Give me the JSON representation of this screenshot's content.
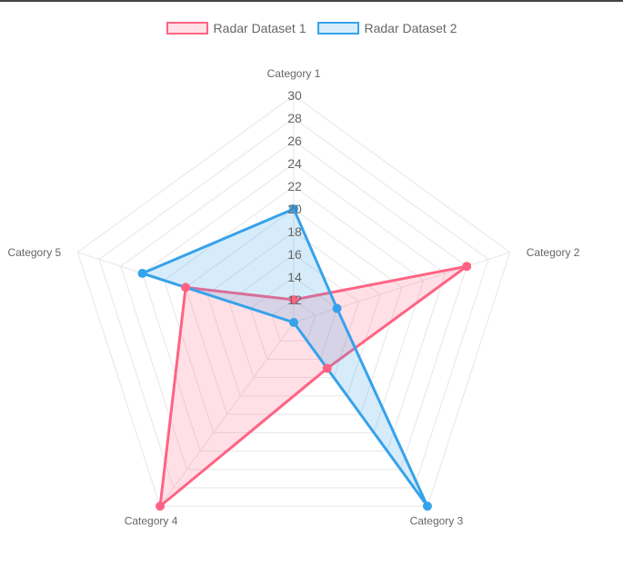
{
  "chart_data": {
    "type": "radar",
    "labels": [
      "Category 1",
      "Category 2",
      "Category 3",
      "Category 4",
      "Category 5"
    ],
    "rmin": 10,
    "rmax": 30,
    "ticks": [
      "12",
      "14",
      "16",
      "18",
      "20",
      "22",
      "24",
      "26",
      "28",
      "30"
    ],
    "grid": true,
    "legend_position": "top",
    "series": [
      {
        "name": "Radar Dataset 1",
        "values": [
          12,
          26,
          15,
          30,
          20
        ],
        "border_color": "#ff6384",
        "fill_color": "rgba(255, 99, 132, 0.2)"
      },
      {
        "name": "Radar Dataset 2",
        "values": [
          20,
          14,
          30,
          10,
          24
        ],
        "border_color": "#36a2eb",
        "fill_color": "rgba(54, 162, 235, 0.2)"
      }
    ]
  }
}
